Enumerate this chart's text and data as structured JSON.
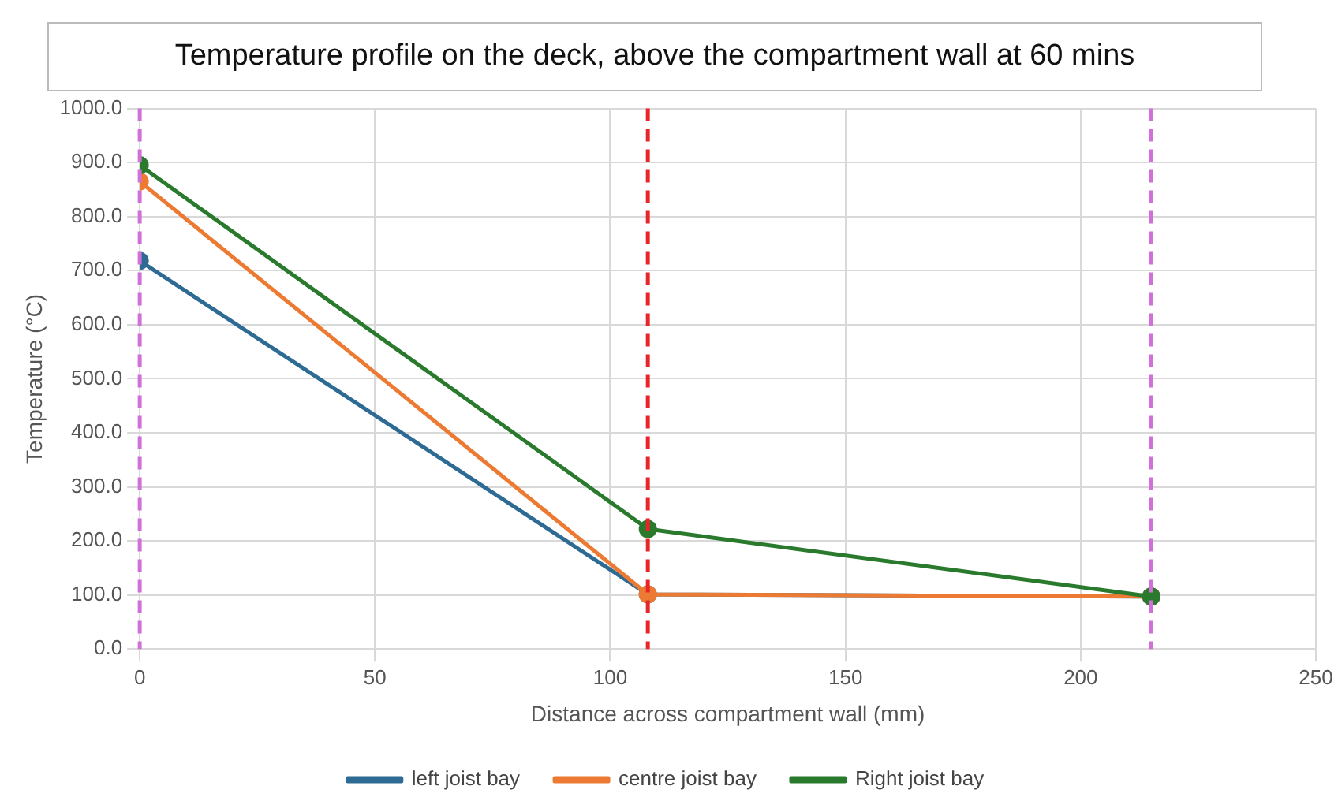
{
  "chart_data": {
    "type": "line",
    "title": "Temperature profile on the deck, above the compartment wall at 60 mins",
    "xlabel": "Distance across compartment wall (mm)",
    "ylabel": "Temperature (°C)",
    "x": [
      0,
      108,
      215
    ],
    "series": [
      {
        "name": "left joist bay",
        "color": "#2e6b94",
        "values": [
          718,
          101,
          97
        ]
      },
      {
        "name": "centre joist bay",
        "color": "#ec7a32",
        "values": [
          865,
          101,
          97
        ]
      },
      {
        "name": "Right joist bay",
        "color": "#2a7a2e",
        "values": [
          895,
          222,
          97
        ]
      }
    ],
    "xlim": [
      0,
      250
    ],
    "xticks": [
      0,
      50,
      100,
      150,
      200,
      250
    ],
    "ylim": [
      0,
      1000
    ],
    "yticks": [
      {
        "value": 0,
        "label": "0.0"
      },
      {
        "value": 100,
        "label": "100.0"
      },
      {
        "value": 200,
        "label": "200.0"
      },
      {
        "value": 300,
        "label": "300.0"
      },
      {
        "value": 400,
        "label": "400.0"
      },
      {
        "value": 500,
        "label": "500.0"
      },
      {
        "value": 600,
        "label": "600.0"
      },
      {
        "value": 700,
        "label": "700.0"
      },
      {
        "value": 800,
        "label": "800.0"
      },
      {
        "value": 900,
        "label": "900.0"
      },
      {
        "value": 1000,
        "label": "1000.0"
      }
    ],
    "ref_lines": [
      {
        "axis": "x",
        "value": 0,
        "color": "#d070d8",
        "line_style": "dashed"
      },
      {
        "axis": "x",
        "value": 108,
        "color": "#e8262a",
        "line_style": "dashed"
      },
      {
        "axis": "x",
        "value": 215,
        "color": "#d070d8",
        "line_style": "dashed"
      }
    ],
    "grid": true,
    "legend": "bottom",
    "marker": "circle",
    "line_style": "solid"
  }
}
